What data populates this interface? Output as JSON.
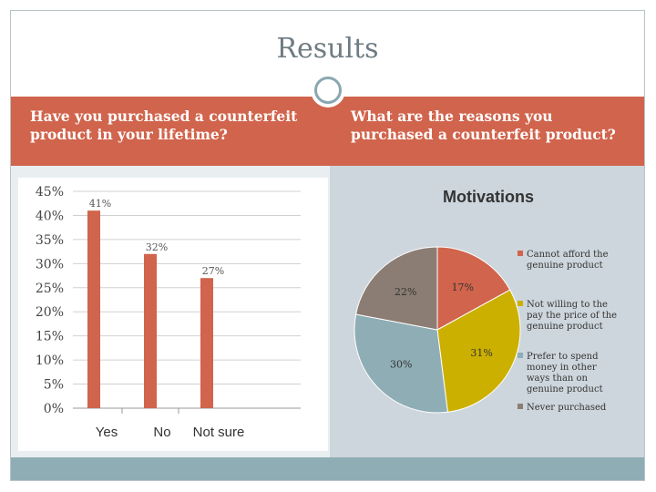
{
  "slide": {
    "title": "Results",
    "left_heading": "Have you purchased a counterfeit product in your lifetime?",
    "right_heading": "What are the reasons you purchased a counterfeit product?"
  },
  "colors": {
    "bar": "#d1644c",
    "accent_band": "#d1644c",
    "footer": "#8fadb5",
    "pie_slices": [
      "#d1644c",
      "#ccb000",
      "#8fadb5",
      "#8b7d73"
    ]
  },
  "chart_data": [
    {
      "type": "bar",
      "categories": [
        "Yes",
        "No",
        "Not sure"
      ],
      "values": [
        41,
        32,
        27
      ],
      "data_labels": [
        "41%",
        "32%",
        "27%"
      ],
      "ylim": [
        0,
        45
      ],
      "yticks": [
        "0%",
        "5%",
        "10%",
        "15%",
        "20%",
        "25%",
        "30%",
        "35%",
        "40%",
        "45%"
      ],
      "grid": true
    },
    {
      "type": "pie",
      "title": "Motivations",
      "values": [
        17,
        31,
        30,
        22
      ],
      "data_labels": [
        "17%",
        "31%",
        "30%",
        "22%"
      ],
      "legend": [
        [
          "Cannot afford the",
          "genuine product"
        ],
        [
          "Not willing to the",
          "pay the price of the",
          "genuine product"
        ],
        [
          "Prefer to spend",
          "money in other",
          "ways than on",
          "genuine product"
        ],
        [
          "Never purchased"
        ]
      ],
      "legend_position": "right"
    }
  ]
}
